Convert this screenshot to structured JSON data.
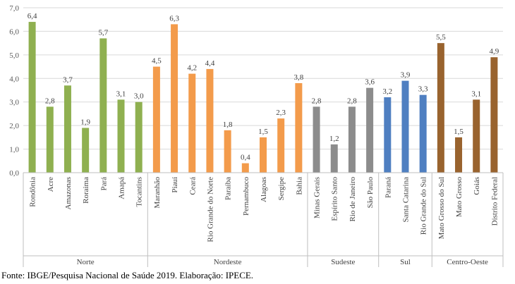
{
  "chart_data": {
    "type": "bar",
    "categories": [
      "Rondônia",
      "Acre",
      "Amazonas",
      "Roraima",
      "Pará",
      "Amapá",
      "Tocantins",
      "Maranhão",
      "Piauí",
      "Ceará",
      "Rio Grande do Norte",
      "Paraíba",
      "Pernambuco",
      "Alagoas",
      "Sergipe",
      "Bahia",
      "Minas Gerais",
      "Espírito Santo",
      "Rio de Janeiro",
      "São Paulo",
      "Paraná",
      "Santa Catarina",
      "Rio Grande do Sul",
      "Mato Grosso do Sul",
      "Mato Grosso",
      "Goiás",
      "Distrito Federal"
    ],
    "values": [
      6.4,
      2.8,
      3.7,
      1.9,
      5.7,
      3.1,
      3.0,
      4.5,
      6.3,
      4.2,
      4.4,
      1.8,
      0.4,
      1.5,
      2.3,
      3.8,
      2.8,
      1.2,
      2.8,
      3.6,
      3.2,
      3.9,
      3.3,
      5.5,
      1.5,
      3.1,
      4.9
    ],
    "value_labels": [
      "6,4",
      "2,8",
      "3,7",
      "1,9",
      "5,7",
      "3,1",
      "3,0",
      "4,5",
      "6,3",
      "4,2",
      "4,4",
      "1,8",
      "0,4",
      "1,5",
      "2,3",
      "3,8",
      "2,8",
      "1,2",
      "2,8",
      "3,6",
      "3,2",
      "3,9",
      "3,3",
      "5,5",
      "1,5",
      "3,1",
      "4,9"
    ],
    "groups": [
      {
        "name": "Norte",
        "count": 7,
        "color": "#8fb050"
      },
      {
        "name": "Nordeste",
        "count": 9,
        "color": "#f39b4b"
      },
      {
        "name": "Sudeste",
        "count": 4,
        "color": "#8c8c8c"
      },
      {
        "name": "Sul",
        "count": 3,
        "color": "#4f7fc1"
      },
      {
        "name": "Centro-Oeste",
        "count": 4,
        "color": "#99632e"
      }
    ],
    "ylim": [
      0,
      7
    ],
    "yticks": [
      "0,0",
      "1,0",
      "2,0",
      "3,0",
      "4,0",
      "5,0",
      "6,0",
      "7,0"
    ],
    "grid": true,
    "title": "",
    "xlabel": "",
    "ylabel": ""
  },
  "source_note": "Fonte: IBGE/Pesquisa Nacional de Saúde 2019. Elaboração: IPECE."
}
